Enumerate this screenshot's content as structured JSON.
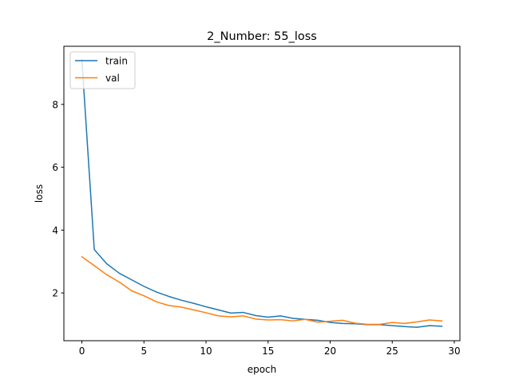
{
  "chart_data": {
    "type": "line",
    "title": "2_Number: 55_loss",
    "xlabel": "epoch",
    "ylabel": "loss",
    "xlim": [
      -1.45,
      30.45
    ],
    "ylim": [
      0.48,
      9.85
    ],
    "xticks": [
      0,
      5,
      10,
      15,
      20,
      25,
      30
    ],
    "yticks": [
      2,
      4,
      6,
      8
    ],
    "grid": false,
    "legend_position": "top-left",
    "x": [
      0,
      1,
      2,
      3,
      4,
      5,
      6,
      7,
      8,
      9,
      10,
      11,
      12,
      13,
      14,
      15,
      16,
      17,
      18,
      19,
      20,
      21,
      22,
      23,
      24,
      25,
      26,
      27,
      28,
      29
    ],
    "series": [
      {
        "name": "train",
        "color": "#1f77b4",
        "values": [
          9.42,
          3.38,
          2.93,
          2.63,
          2.42,
          2.21,
          2.03,
          1.89,
          1.77,
          1.67,
          1.56,
          1.46,
          1.36,
          1.38,
          1.28,
          1.23,
          1.27,
          1.19,
          1.16,
          1.13,
          1.06,
          1.03,
          1.02,
          0.99,
          0.99,
          0.96,
          0.93,
          0.91,
          0.96,
          0.94
        ]
      },
      {
        "name": "val",
        "color": "#ff7f0e",
        "values": [
          3.15,
          2.87,
          2.58,
          2.35,
          2.07,
          1.91,
          1.72,
          1.6,
          1.55,
          1.46,
          1.37,
          1.27,
          1.24,
          1.27,
          1.17,
          1.14,
          1.15,
          1.11,
          1.16,
          1.07,
          1.1,
          1.13,
          1.04,
          1.0,
          1.0,
          1.06,
          1.03,
          1.08,
          1.14,
          1.11
        ]
      }
    ]
  }
}
